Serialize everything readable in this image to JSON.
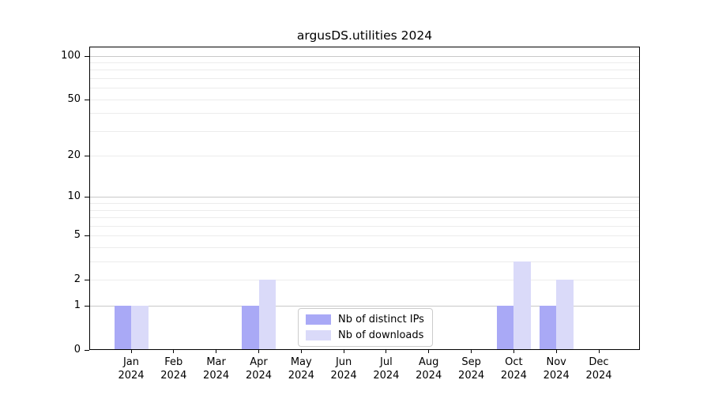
{
  "chart_data": {
    "type": "bar",
    "title": "argusDS.utilities 2024",
    "categories": [
      "Jan",
      "Feb",
      "Mar",
      "Apr",
      "May",
      "Jun",
      "Jul",
      "Aug",
      "Sep",
      "Oct",
      "Nov",
      "Dec"
    ],
    "x_tick_second_line": "2024",
    "series": [
      {
        "name": "Nb of distinct IPs",
        "color": "#a9a9f6",
        "values": [
          1,
          0,
          0,
          1,
          0,
          0,
          0,
          0,
          0,
          1,
          1,
          0
        ]
      },
      {
        "name": "Nb of downloads",
        "color": "#dadaf9",
        "values": [
          1,
          0,
          0,
          2,
          0,
          0,
          0,
          0,
          0,
          3,
          2,
          0
        ]
      }
    ],
    "y_scale": "log1p",
    "ylim": [
      0,
      115.4
    ],
    "y_ticks": [
      0,
      1,
      2,
      5,
      10,
      20,
      50,
      100
    ],
    "gridlines": {
      "major": [
        1,
        10,
        100
      ],
      "minor": [
        2,
        3,
        4,
        5,
        6,
        7,
        8,
        9,
        20,
        30,
        40,
        50,
        60,
        70,
        80,
        90
      ]
    },
    "grid": true,
    "legend_position": "lower center",
    "xlabel": "",
    "ylabel": ""
  },
  "colors": {
    "bar_distinct_ips": "#a9a9f6",
    "bar_downloads": "#dadaf9",
    "grid_major": "#c9c9c9",
    "grid_minor": "#ececec",
    "spine": "#000000",
    "legend_border": "#cccccc",
    "text": "#000000",
    "background": "#ffffff"
  }
}
